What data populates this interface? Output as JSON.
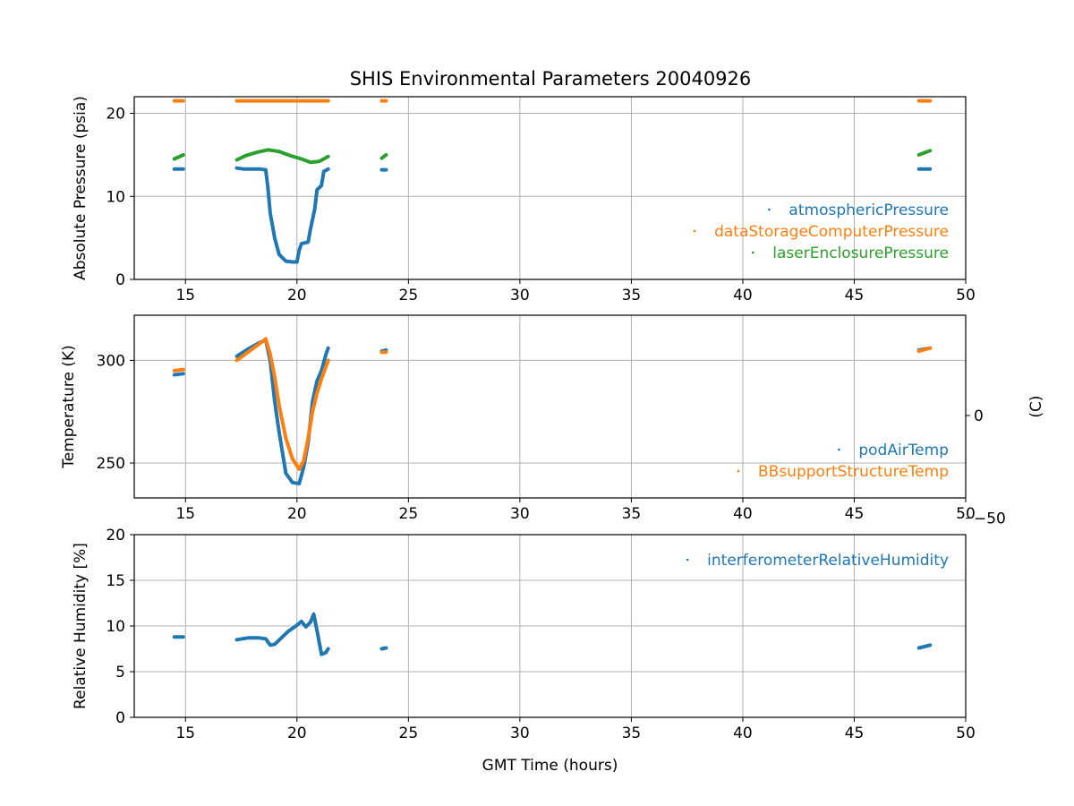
{
  "figure": {
    "title": "SHIS Environmental Parameters 20040926"
  },
  "chart_data": [
    {
      "type": "scatter",
      "panel": "pressure",
      "ylabel": "Absolute Pressure (psia)",
      "xlim": [
        12.7,
        50
      ],
      "ylim": [
        0,
        22
      ],
      "xticks": [
        15,
        20,
        25,
        30,
        35,
        40,
        45,
        50
      ],
      "yticks": [
        0,
        10,
        20
      ],
      "grid": true,
      "legend_position": "lower-right",
      "series": [
        {
          "name": "atmosphericPressure",
          "color": "#1f77b4",
          "segments": [
            [
              [
                14.5,
                13.3
              ],
              [
                14.9,
                13.3
              ]
            ],
            [
              [
                17.3,
                13.4
              ],
              [
                17.6,
                13.3
              ],
              [
                18.0,
                13.3
              ],
              [
                18.3,
                13.3
              ],
              [
                18.6,
                13.2
              ],
              [
                18.7,
                11.0
              ],
              [
                18.8,
                8.0
              ],
              [
                19.0,
                5.0
              ],
              [
                19.2,
                3.0
              ],
              [
                19.5,
                2.2
              ],
              [
                19.8,
                2.1
              ],
              [
                20.0,
                2.1
              ],
              [
                20.1,
                3.5
              ],
              [
                20.2,
                4.3
              ],
              [
                20.5,
                4.5
              ],
              [
                20.6,
                6.0
              ],
              [
                20.8,
                8.5
              ],
              [
                20.9,
                10.8
              ],
              [
                21.1,
                11.3
              ],
              [
                21.2,
                13.0
              ],
              [
                21.4,
                13.3
              ]
            ],
            [
              [
                23.8,
                13.2
              ],
              [
                24.0,
                13.2
              ]
            ],
            [
              [
                47.9,
                13.3
              ],
              [
                48.4,
                13.3
              ]
            ]
          ]
        },
        {
          "name": "dataStorageComputerPressure",
          "color": "#ff7f0e",
          "segments": [
            [
              [
                14.5,
                21.5
              ],
              [
                14.9,
                21.5
              ]
            ],
            [
              [
                17.3,
                21.5
              ],
              [
                18.5,
                21.5
              ],
              [
                19.5,
                21.5
              ],
              [
                20.5,
                21.5
              ],
              [
                21.4,
                21.5
              ]
            ],
            [
              [
                23.8,
                21.5
              ],
              [
                24.0,
                21.5
              ]
            ],
            [
              [
                47.9,
                21.5
              ],
              [
                48.4,
                21.5
              ]
            ]
          ]
        },
        {
          "name": "laserEnclosurePressure",
          "color": "#2ca02c",
          "segments": [
            [
              [
                14.5,
                14.5
              ],
              [
                14.9,
                15.0
              ]
            ],
            [
              [
                17.3,
                14.4
              ],
              [
                17.7,
                14.9
              ],
              [
                18.2,
                15.3
              ],
              [
                18.7,
                15.6
              ],
              [
                19.2,
                15.4
              ],
              [
                19.7,
                14.9
              ],
              [
                20.2,
                14.5
              ],
              [
                20.6,
                14.1
              ],
              [
                21.0,
                14.2
              ],
              [
                21.4,
                14.8
              ]
            ],
            [
              [
                23.8,
                14.6
              ],
              [
                24.0,
                15.0
              ]
            ],
            [
              [
                47.9,
                15.0
              ],
              [
                48.4,
                15.5
              ]
            ]
          ]
        }
      ]
    },
    {
      "type": "scatter",
      "panel": "temperature",
      "ylabel": "Temperature (K)",
      "ylabel_right": "(C)",
      "xlim": [
        12.7,
        50
      ],
      "ylim": [
        233,
        322
      ],
      "xticks": [
        15,
        20,
        25,
        30,
        35,
        40,
        45,
        50
      ],
      "yticks": [
        250,
        300
      ],
      "yticks_right_celsius": [
        -50,
        0
      ],
      "grid": true,
      "legend_position": "lower-right",
      "series": [
        {
          "name": "podAirTemp",
          "color": "#1f77b4",
          "segments": [
            [
              [
                14.5,
                293.0
              ],
              [
                14.9,
                293.5
              ]
            ],
            [
              [
                17.3,
                302.0
              ],
              [
                17.8,
                305.5
              ],
              [
                18.3,
                308.5
              ],
              [
                18.6,
                310.0
              ],
              [
                18.8,
                300.0
              ],
              [
                19.0,
                280.0
              ],
              [
                19.2,
                265.0
              ],
              [
                19.5,
                245.0
              ],
              [
                19.8,
                240.5
              ],
              [
                20.1,
                240.0
              ],
              [
                20.3,
                248.0
              ],
              [
                20.5,
                260.0
              ],
              [
                20.7,
                280.0
              ],
              [
                20.9,
                290.0
              ],
              [
                21.1,
                295.0
              ],
              [
                21.3,
                303.0
              ],
              [
                21.4,
                306.0
              ]
            ],
            [
              [
                23.8,
                304.5
              ],
              [
                24.0,
                305.0
              ]
            ],
            [
              [
                47.9,
                305.0
              ],
              [
                48.4,
                306.0
              ]
            ]
          ]
        },
        {
          "name": "BBsupportStructureTemp",
          "color": "#ff7f0e",
          "segments": [
            [
              [
                14.5,
                295.0
              ],
              [
                14.9,
                295.5
              ]
            ],
            [
              [
                17.3,
                300.0
              ],
              [
                17.8,
                304.0
              ],
              [
                18.3,
                308.0
              ],
              [
                18.6,
                310.5
              ],
              [
                18.8,
                303.0
              ],
              [
                19.0,
                292.0
              ],
              [
                19.2,
                278.0
              ],
              [
                19.5,
                262.0
              ],
              [
                19.8,
                252.0
              ],
              [
                20.1,
                247.0
              ],
              [
                20.3,
                251.0
              ],
              [
                20.5,
                262.0
              ],
              [
                20.7,
                275.0
              ],
              [
                20.9,
                284.0
              ],
              [
                21.1,
                291.0
              ],
              [
                21.4,
                300.0
              ]
            ],
            [
              [
                23.8,
                304.0
              ],
              [
                24.0,
                304.0
              ]
            ],
            [
              [
                47.9,
                304.5
              ],
              [
                48.4,
                306.0
              ]
            ]
          ]
        }
      ]
    },
    {
      "type": "scatter",
      "panel": "humidity",
      "ylabel": "Relative Humidity [%]",
      "xlabel": "GMT Time (hours)",
      "xlim": [
        12.7,
        50
      ],
      "ylim": [
        0,
        20
      ],
      "xticks": [
        15,
        20,
        25,
        30,
        35,
        40,
        45,
        50
      ],
      "yticks": [
        0,
        5,
        10,
        15,
        20
      ],
      "grid": true,
      "legend_position": "top-right",
      "series": [
        {
          "name": "interferometerRelativeHumidity",
          "color": "#1f77b4",
          "segments": [
            [
              [
                14.5,
                8.8
              ],
              [
                14.9,
                8.8
              ]
            ],
            [
              [
                17.3,
                8.5
              ],
              [
                17.8,
                8.7
              ],
              [
                18.3,
                8.7
              ],
              [
                18.6,
                8.6
              ],
              [
                18.8,
                7.9
              ],
              [
                19.0,
                8.0
              ],
              [
                19.3,
                8.7
              ],
              [
                19.6,
                9.4
              ],
              [
                19.9,
                9.9
              ],
              [
                20.2,
                10.5
              ],
              [
                20.4,
                9.9
              ],
              [
                20.6,
                10.4
              ],
              [
                20.75,
                11.3
              ],
              [
                20.9,
                9.5
              ],
              [
                21.1,
                6.9
              ],
              [
                21.3,
                7.1
              ],
              [
                21.4,
                7.5
              ]
            ],
            [
              [
                23.8,
                7.5
              ],
              [
                24.0,
                7.6
              ]
            ],
            [
              [
                47.9,
                7.6
              ],
              [
                48.4,
                7.9
              ]
            ]
          ]
        }
      ]
    }
  ]
}
